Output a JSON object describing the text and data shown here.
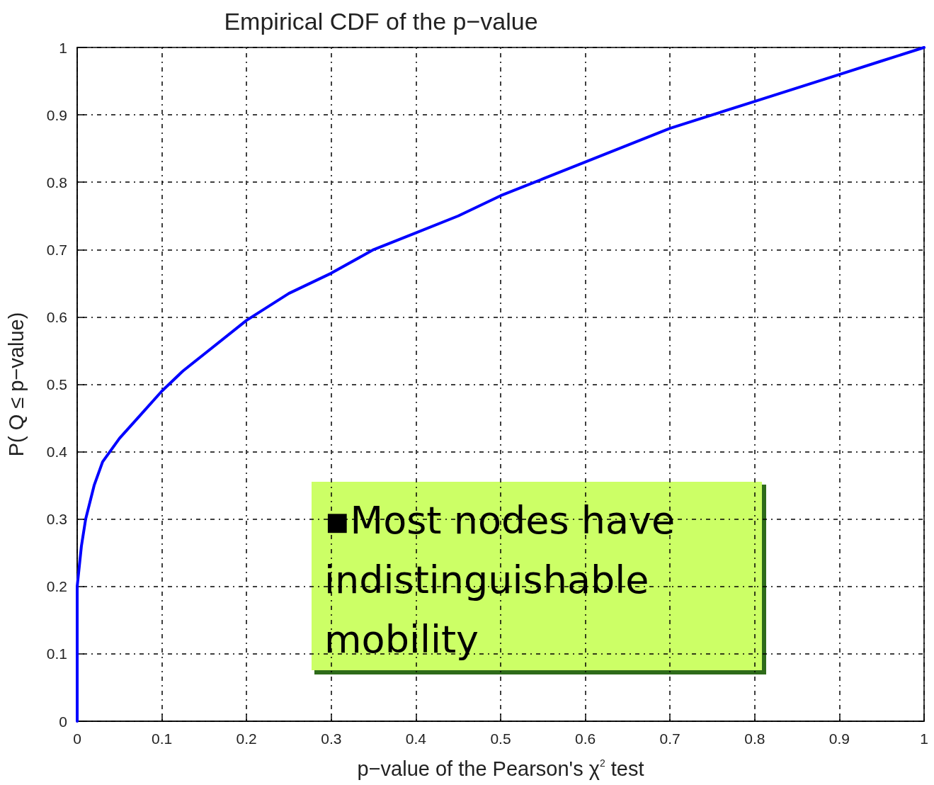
{
  "chart_data": {
    "type": "line",
    "title": "Empirical CDF of the p−value",
    "xlabel": "p−value of the Pearson's χ$^{2}$ test",
    "ylabel": "P( Q ≤ p−value)",
    "annotations": [
      "▪Most nodes have indistinguishable mobility"
    ],
    "x": [
      0,
      0,
      0.005,
      0.01,
      0.02,
      0.03,
      0.05,
      0.075,
      0.1,
      0.125,
      0.15,
      0.2,
      0.25,
      0.3,
      0.35,
      0.4,
      0.45,
      0.5,
      0.55,
      0.6,
      0.65,
      0.7,
      0.75,
      0.8,
      0.85,
      0.9,
      0.95,
      1
    ],
    "series": [
      {
        "color": "#0000ff",
        "values": [
          0,
          0.2,
          0.26,
          0.3,
          0.35,
          0.385,
          0.42,
          0.455,
          0.49,
          0.52,
          0.545,
          0.595,
          0.635,
          0.665,
          0.7,
          0.725,
          0.75,
          0.78,
          0.805,
          0.83,
          0.855,
          0.88,
          0.9,
          0.92,
          0.94,
          0.96,
          0.98,
          1
        ]
      }
    ],
    "xlim": [
      0,
      1
    ],
    "ylim": [
      0,
      1
    ],
    "xticks": [
      0,
      0.1,
      0.2,
      0.3,
      0.4,
      0.5,
      0.6,
      0.7,
      0.8,
      0.9,
      1
    ],
    "yticks": [
      0,
      0.1,
      0.2,
      0.3,
      0.4,
      0.5,
      0.6,
      0.7,
      0.8,
      0.9,
      1
    ],
    "grid": true,
    "marker": "none",
    "line_style": "solid"
  }
}
